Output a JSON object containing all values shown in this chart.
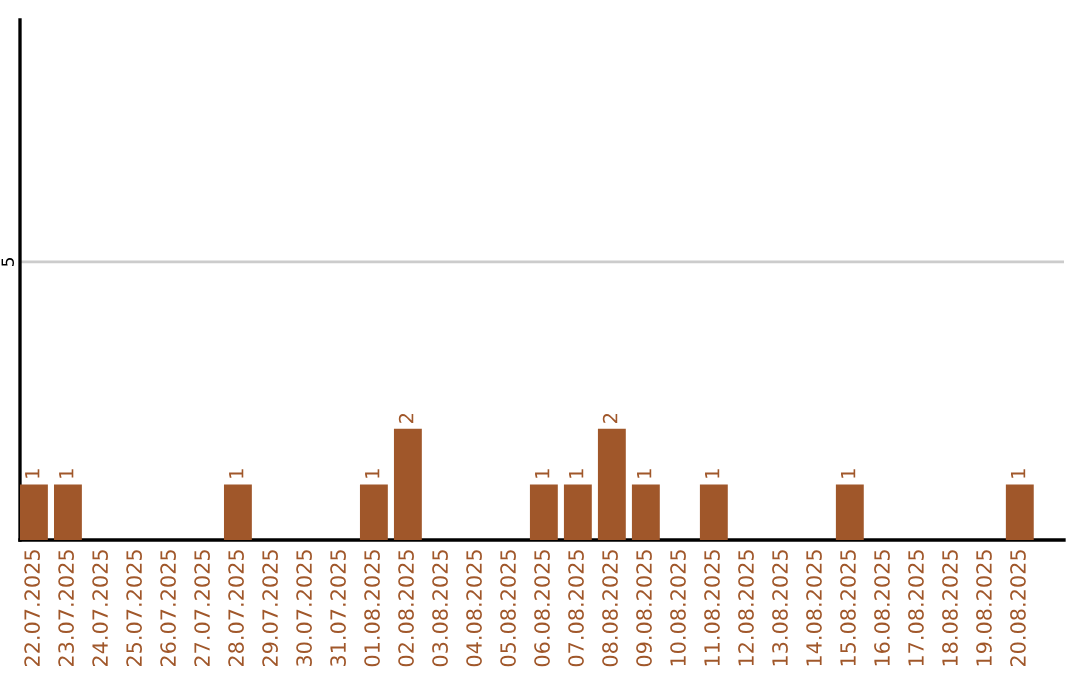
{
  "chart_data": {
    "type": "bar",
    "categories": [
      "22.07.2025",
      "23.07.2025",
      "24.07.2025",
      "25.07.2025",
      "26.07.2025",
      "27.07.2025",
      "28.07.2025",
      "29.07.2025",
      "30.07.2025",
      "31.07.2025",
      "01.08.2025",
      "02.08.2025",
      "03.08.2025",
      "04.08.2025",
      "05.08.2025",
      "06.08.2025",
      "07.08.2025",
      "08.08.2025",
      "09.08.2025",
      "10.08.2025",
      "11.08.2025",
      "12.08.2025",
      "13.08.2025",
      "14.08.2025",
      "15.08.2025",
      "16.08.2025",
      "17.08.2025",
      "18.08.2025",
      "19.08.2025",
      "20.08.2025"
    ],
    "values": [
      1,
      1,
      0,
      0,
      0,
      0,
      1,
      0,
      0,
      0,
      1,
      2,
      0,
      0,
      0,
      1,
      1,
      2,
      1,
      0,
      1,
      0,
      0,
      0,
      1,
      0,
      0,
      0,
      0,
      1
    ],
    "value_labels": [
      "1",
      "1",
      null,
      null,
      null,
      null,
      "1",
      null,
      null,
      null,
      "1",
      "2",
      null,
      null,
      null,
      "1",
      "1",
      "2",
      "1",
      null,
      "1",
      null,
      null,
      null,
      "1",
      null,
      null,
      null,
      null,
      "1"
    ],
    "color": "#a0572a",
    "ylim": [
      0,
      9.35
    ],
    "yticks": [
      5
    ],
    "grid": "y"
  }
}
